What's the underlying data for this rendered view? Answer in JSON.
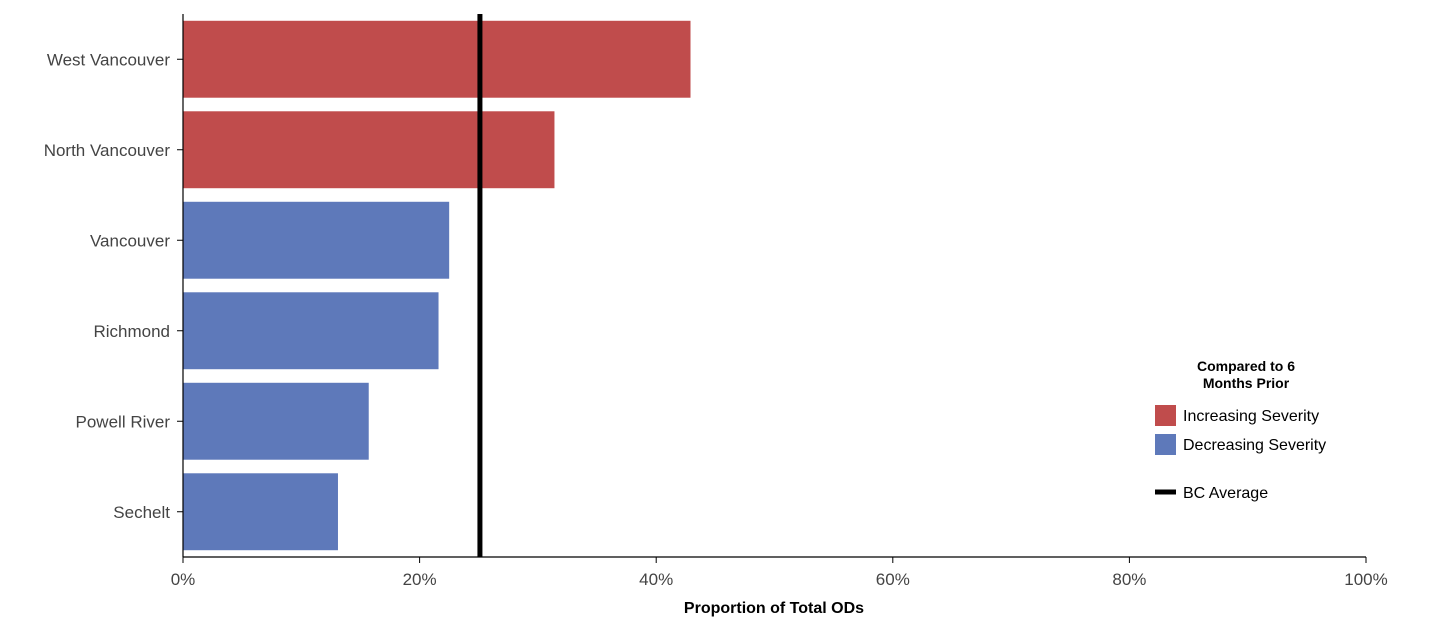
{
  "chart_data": {
    "type": "bar",
    "orientation": "horizontal",
    "categories": [
      "West Vancouver",
      "North Vancouver",
      "Vancouver",
      "Richmond",
      "Powell River",
      "Sechelt"
    ],
    "values": [
      42.9,
      31.4,
      22.5,
      21.6,
      15.7,
      13.1
    ],
    "status": [
      "increasing",
      "increasing",
      "decreasing",
      "decreasing",
      "decreasing",
      "decreasing"
    ],
    "xlabel": "Proportion of Total ODs",
    "xlim": [
      0,
      100
    ],
    "x_ticks": [
      "0%",
      "20%",
      "40%",
      "60%",
      "80%",
      "100%"
    ],
    "x_tick_values": [
      0,
      20,
      40,
      60,
      80,
      100
    ],
    "reference_line": {
      "label": "BC Average",
      "value": 25.1
    },
    "legend": {
      "title_lines": [
        "Compared to 6",
        "Months Prior"
      ],
      "items": [
        {
          "label": "Increasing Severity",
          "color": "#c04c4c"
        },
        {
          "label": "Decreasing Severity",
          "color": "#5e79ba"
        }
      ],
      "line_label": "BC Average",
      "placement": "right"
    },
    "colors": {
      "increasing": "#c04c4c",
      "decreasing": "#5e79ba",
      "reference": "#000000"
    },
    "grid": false
  }
}
